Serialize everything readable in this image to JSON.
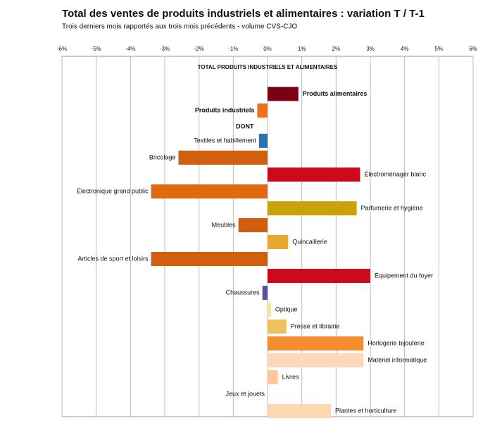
{
  "chart_data": {
    "type": "bar",
    "orientation": "horizontal",
    "title": "Total des ventes de produits industriels et alimentaires : variation T / T-1",
    "subtitle": "Trois derniers mois rapportés aux trois mois précédents - volume CVS-CJO",
    "group_label": "DONT",
    "categories": [
      "TOTAL PRODUITS INDUSTRIELS ET ALIMENTAIRES",
      "Produits alimentaires",
      "Produits industriels",
      "Textiles et habillement",
      "Bricolage",
      "Électroménager blanc",
      "Électronique grand public",
      "Parfumerie et hygiène",
      "Meubles",
      "Quincaillerie",
      "Articles de sport et loisirs",
      "Équipement du foyer",
      "Chaussures",
      "Optique",
      "Presse et librairie",
      "Horlogerie bijouterie",
      "Matériel informatique",
      "Livres",
      "Jeux et jouets",
      "Plantes et horticulture"
    ],
    "values": [
      0,
      0.9,
      -0.3,
      -0.25,
      -2.6,
      2.7,
      -3.4,
      2.6,
      -0.85,
      0.6,
      -3.4,
      3.0,
      -0.15,
      0.1,
      0.55,
      2.8,
      2.8,
      0.3,
      0,
      1.85
    ],
    "colors": [
      "#7b0014",
      "#7b0014",
      "#f07020",
      "#2e6fad",
      "#d06010",
      "#cc0a1e",
      "#e06a10",
      "#c9a20a",
      "#d06010",
      "#e8a830",
      "#d06010",
      "#cc0a1e",
      "#5a4fa0",
      "#f2e6a0",
      "#f0c060",
      "#f48c30",
      "#fcd9b8",
      "#fcc79c",
      "#fbefc8",
      "#fcd9b0"
    ],
    "xlim": [
      -6,
      6
    ],
    "xticks": [
      {
        "value": -6,
        "label": "-6%"
      },
      {
        "value": -5,
        "label": "-5%"
      },
      {
        "value": -4,
        "label": "-4%"
      },
      {
        "value": -3,
        "label": "-3%"
      },
      {
        "value": -2,
        "label": "-2%"
      },
      {
        "value": -1,
        "label": "-1%"
      },
      {
        "value": 0,
        "label": "0%"
      },
      {
        "value": 1,
        "label": "1%"
      },
      {
        "value": 2,
        "label": "2%"
      },
      {
        "value": 3,
        "label": "3%"
      },
      {
        "value": 4,
        "label": "4%"
      },
      {
        "value": 5,
        "label": "5%"
      },
      {
        "value": 6,
        "label": "6%"
      }
    ],
    "grid": true
  }
}
